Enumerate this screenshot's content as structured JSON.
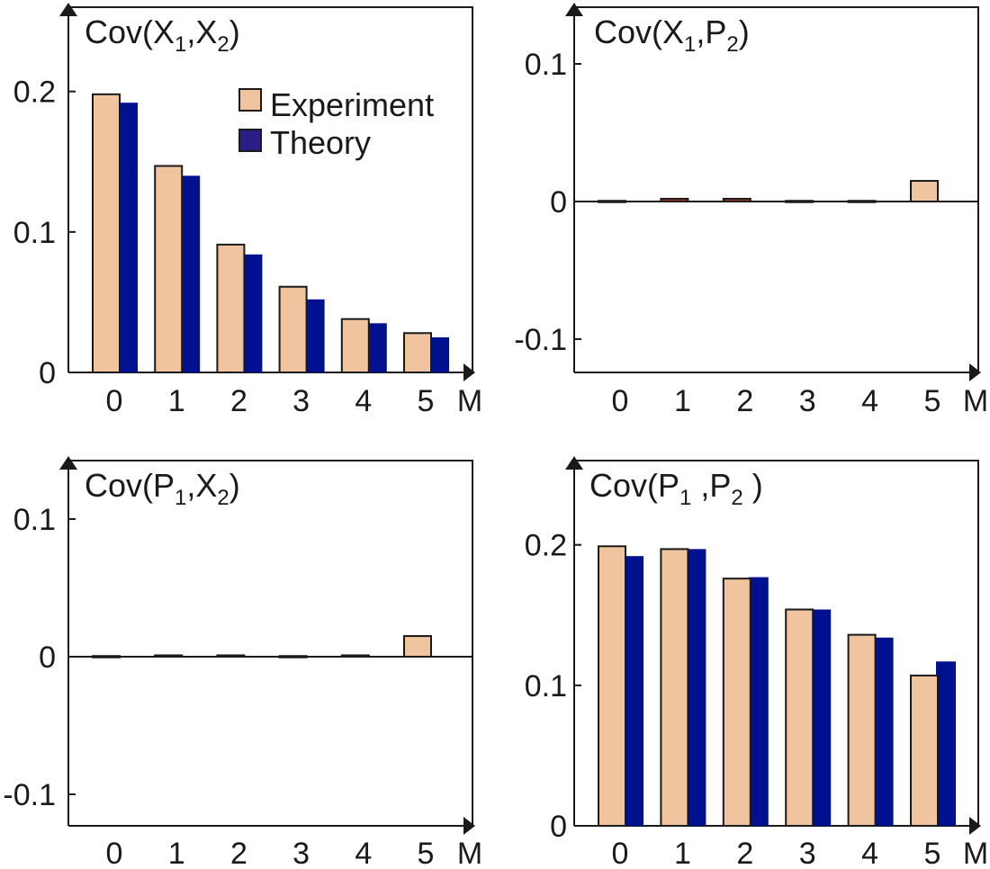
{
  "colors": {
    "experiment": "#efc49e",
    "theory": "#00118f",
    "theory_legend": "#2a1f86",
    "small_experiment": "#b23a2a",
    "axis": "#1a1a1a"
  },
  "legend": {
    "experiment_label": "Experiment",
    "theory_label": "Theory"
  },
  "chart_data": [
    {
      "id": "cov-x1-x2",
      "type": "bar",
      "title": {
        "prefix": "Cov(X",
        "sub1": "1",
        "mid": ",X",
        "sub2": "2",
        "suffix": ")"
      },
      "xlabel": "M",
      "categories": [
        "0",
        "1",
        "2",
        "3",
        "4",
        "5"
      ],
      "ylim": [
        0,
        0.26
      ],
      "yticks": [
        0,
        0.1,
        0.2
      ],
      "ytick_labels": [
        "0",
        "0.1",
        "0.2"
      ],
      "series": [
        {
          "name": "Experiment",
          "values": [
            0.198,
            0.147,
            0.091,
            0.061,
            0.038,
            0.028
          ]
        },
        {
          "name": "Theory",
          "values": [
            0.192,
            0.14,
            0.084,
            0.052,
            0.035,
            0.025
          ]
        }
      ]
    },
    {
      "id": "cov-x1-p2",
      "type": "bar",
      "title": {
        "prefix": "Cov(X",
        "sub1": "1",
        "mid": ",P",
        "sub2": "2",
        "suffix": ")"
      },
      "xlabel": "M",
      "categories": [
        "0",
        "1",
        "2",
        "3",
        "4",
        "5"
      ],
      "ylim": [
        -0.125,
        0.14
      ],
      "yticks": [
        -0.1,
        0,
        0.1
      ],
      "ytick_labels": [
        "-0.1",
        "0",
        "0.1"
      ],
      "series": [
        {
          "name": "Experiment",
          "values": [
            0.0005,
            0.002,
            0.002,
            0.0005,
            0.0005,
            0.015
          ]
        }
      ]
    },
    {
      "id": "cov-p1-x2",
      "type": "bar",
      "title": {
        "prefix": "Cov(P",
        "sub1": "1",
        "mid": ",X",
        "sub2": "2",
        "suffix": ")"
      },
      "xlabel": "M",
      "categories": [
        "0",
        "1",
        "2",
        "3",
        "4",
        "5"
      ],
      "ylim": [
        -0.125,
        0.14
      ],
      "yticks": [
        -0.1,
        0,
        0.1
      ],
      "ytick_labels": [
        "-0.1",
        "0",
        "0.1"
      ],
      "series": [
        {
          "name": "Experiment",
          "values": [
            0.0005,
            0.001,
            0.001,
            0.0005,
            0.001,
            0.015
          ]
        }
      ]
    },
    {
      "id": "cov-p1-p2",
      "type": "bar",
      "title": {
        "prefix": "Cov(P",
        "sub1": "1",
        "mid": " ,P",
        "sub2": "2",
        "suffix": " )"
      },
      "xlabel": "M",
      "categories": [
        "0",
        "1",
        "2",
        "3",
        "4",
        "5"
      ],
      "ylim": [
        0,
        0.26
      ],
      "yticks": [
        0,
        0.1,
        0.2
      ],
      "ytick_labels": [
        "0",
        "0.1",
        "0.2"
      ],
      "series": [
        {
          "name": "Experiment",
          "values": [
            0.199,
            0.197,
            0.176,
            0.154,
            0.136,
            0.107
          ]
        },
        {
          "name": "Theory",
          "values": [
            0.192,
            0.197,
            0.177,
            0.154,
            0.134,
            0.117
          ]
        }
      ]
    }
  ]
}
